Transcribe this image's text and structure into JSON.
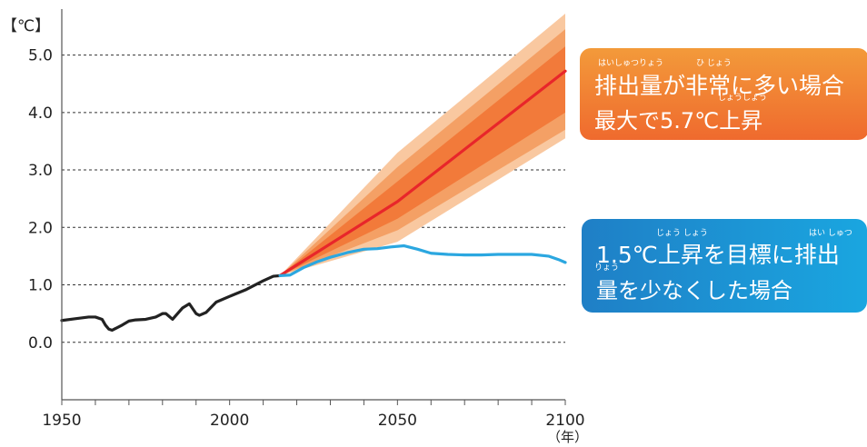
{
  "chart_data": {
    "type": "line",
    "y_unit_label": "【℃】",
    "x_unit_label": "（年）",
    "xlim": [
      1950,
      2100
    ],
    "ylim": [
      -1.0,
      5.8
    ],
    "x_ticks": [
      1950,
      2000,
      2050,
      2100
    ],
    "y_ticks": [
      "5.0",
      "4.0",
      "3.0",
      "2.0",
      "1.0",
      "0.0"
    ],
    "y_tick_values": [
      5.0,
      4.0,
      3.0,
      2.0,
      1.0,
      0.0
    ],
    "grid": "dashed horizontal",
    "series": [
      {
        "color": "#222222",
        "x": [
          1950,
          1954,
          1958,
          1960,
          1962,
          1963,
          1964,
          1965,
          1966,
          1968,
          1970,
          1972,
          1975,
          1978,
          1980,
          1981,
          1983,
          1986,
          1988,
          1990,
          1991,
          1993,
          1996,
          2000,
          2005,
          2010,
          2013,
          2015
        ],
        "y": [
          0.38,
          0.41,
          0.44,
          0.44,
          0.4,
          0.3,
          0.23,
          0.21,
          0.24,
          0.3,
          0.37,
          0.39,
          0.4,
          0.44,
          0.5,
          0.5,
          0.4,
          0.6,
          0.67,
          0.5,
          0.47,
          0.52,
          0.7,
          0.8,
          0.92,
          1.07,
          1.15,
          1.16
        ]
      },
      {
        "color": "#e8262a",
        "x": [
          2015,
          2050,
          2100
        ],
        "y": [
          1.16,
          2.45,
          4.72
        ]
      },
      {
        "color": "#2ba7e0",
        "x": [
          2015,
          2018,
          2022,
          2026,
          2030,
          2035,
          2040,
          2044,
          2048,
          2052,
          2056,
          2060,
          2065,
          2070,
          2075,
          2080,
          2085,
          2090,
          2095,
          2098,
          2100
        ],
        "y": [
          1.16,
          1.17,
          1.3,
          1.4,
          1.48,
          1.56,
          1.62,
          1.63,
          1.66,
          1.68,
          1.62,
          1.55,
          1.53,
          1.52,
          1.52,
          1.53,
          1.53,
          1.53,
          1.5,
          1.44,
          1.39
        ]
      }
    ],
    "bands": [
      {
        "x": [
          2015,
          2050,
          2100
        ],
        "lower": [
          1.16,
          1.75,
          3.55
        ],
        "upper": [
          1.16,
          3.3,
          5.72
        ],
        "color": "#f9c8a0"
      },
      {
        "x": [
          2015,
          2050,
          2100
        ],
        "lower": [
          1.16,
          1.95,
          3.7
        ],
        "upper": [
          1.16,
          3.05,
          5.45
        ],
        "color": "#f4a065"
      },
      {
        "x": [
          2015,
          2050,
          2100
        ],
        "lower": [
          1.16,
          2.15,
          4.0
        ],
        "upper": [
          1.16,
          2.8,
          5.15
        ],
        "color": "#f27a3a"
      }
    ]
  },
  "callouts": {
    "high": {
      "line1": "排出量が非常に多い場合",
      "line2": "最大で5.7℃上昇",
      "ruby_haishutsuryou": "はいしゅつりょう",
      "ruby_hijou": "ひ じょう",
      "ruby_joushou": "じょうしょう",
      "color_top": "#f39a3a",
      "color_bottom": "#ef6a2e"
    },
    "low": {
      "line1": "1.5℃上昇を目標に排出",
      "line2": "量を少なくした場合",
      "ruby_joushou": "じょう しょう",
      "ruby_haishutsu": "はい しゅつ",
      "ruby_ryou": "りょう",
      "color_left": "#1f7fc6",
      "color_right": "#1aa6e0"
    }
  }
}
